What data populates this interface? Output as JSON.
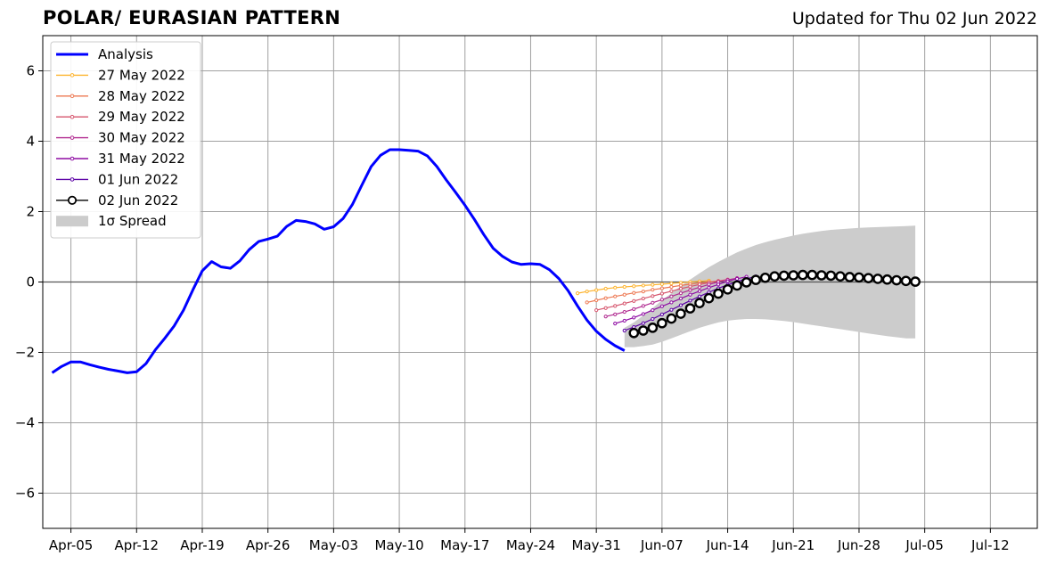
{
  "header": {
    "title": "POLAR/ EURASIAN  PATTERN",
    "updated": "Updated for Thu 02 Jun 2022"
  },
  "chart_data": {
    "type": "line",
    "title": "POLAR/ EURASIAN  PATTERN",
    "xlabel": "",
    "ylabel": "",
    "xlim": [
      "2022-04-02",
      "2022-07-17"
    ],
    "ylim": [
      -7,
      7
    ],
    "x_ticks": [
      "Apr-05",
      "Apr-12",
      "Apr-19",
      "Apr-26",
      "May-03",
      "May-10",
      "May-17",
      "May-24",
      "May-31",
      "Jun-07",
      "Jun-14",
      "Jun-21",
      "Jun-28",
      "Jul-05",
      "Jul-12"
    ],
    "y_ticks": [
      -6,
      -4,
      -2,
      0,
      2,
      4,
      6
    ],
    "grid": true,
    "legend_position": "upper-left",
    "series": [
      {
        "name": "Analysis",
        "color": "#0000ff",
        "start": "2022-04-03",
        "values": [
          -2.58,
          -2.4,
          -2.27,
          -2.27,
          -2.35,
          -2.42,
          -2.48,
          -2.53,
          -2.58,
          -2.55,
          -2.32,
          -1.93,
          -1.6,
          -1.25,
          -0.8,
          -0.22,
          0.32,
          0.58,
          0.43,
          0.39,
          0.6,
          0.92,
          1.15,
          1.22,
          1.3,
          1.58,
          1.75,
          1.72,
          1.65,
          1.5,
          1.57,
          1.8,
          2.2,
          2.75,
          3.28,
          3.6,
          3.76,
          3.76,
          3.74,
          3.72,
          3.58,
          3.28,
          2.9,
          2.55,
          2.18,
          1.78,
          1.35,
          0.96,
          0.73,
          0.57,
          0.5,
          0.52,
          0.5,
          0.35,
          0.1,
          -0.25,
          -0.68,
          -1.08,
          -1.4,
          -1.63,
          -1.81,
          -1.95
        ]
      },
      {
        "name": "27 May 2022",
        "color": "#fdb42f",
        "start": "2022-05-29",
        "values": [
          -0.32,
          -0.27,
          -0.23,
          -0.19,
          -0.16,
          -0.14,
          -0.12,
          -0.1,
          -0.08,
          -0.06,
          -0.04,
          -0.02,
          0,
          0.02,
          0.04
        ]
      },
      {
        "name": "28 May 2022",
        "color": "#ed7953",
        "start": "2022-05-30",
        "values": [
          -0.58,
          -0.52,
          -0.46,
          -0.41,
          -0.36,
          -0.31,
          -0.27,
          -0.22,
          -0.18,
          -0.14,
          -0.1,
          -0.06,
          -0.03,
          0,
          0.03
        ]
      },
      {
        "name": "29 May 2022",
        "color": "#d6556d",
        "start": "2022-05-31",
        "values": [
          -0.8,
          -0.74,
          -0.68,
          -0.61,
          -0.54,
          -0.47,
          -0.4,
          -0.33,
          -0.26,
          -0.19,
          -0.13,
          -0.07,
          -0.02,
          0.03,
          0.07
        ]
      },
      {
        "name": "30 May 2022",
        "color": "#b12a90",
        "start": "2022-06-01",
        "values": [
          -0.98,
          -0.92,
          -0.85,
          -0.77,
          -0.68,
          -0.59,
          -0.5,
          -0.41,
          -0.32,
          -0.23,
          -0.15,
          -0.07,
          0,
          0.06,
          0.11
        ]
      },
      {
        "name": "31 May 2022",
        "color": "#8f0da4",
        "start": "2022-06-02",
        "values": [
          -1.18,
          -1.1,
          -1.01,
          -0.91,
          -0.8,
          -0.69,
          -0.58,
          -0.47,
          -0.36,
          -0.26,
          -0.16,
          -0.07,
          0.02,
          0.09,
          0.15
        ]
      },
      {
        "name": "01 Jun 2022",
        "color": "#5c01a6",
        "start": "2022-06-03",
        "values": [
          -1.38,
          -1.28,
          -1.17,
          -1.05,
          -0.92,
          -0.79,
          -0.66,
          -0.53,
          -0.41,
          -0.29,
          -0.18,
          -0.08,
          0.01,
          0.09,
          0.16
        ]
      },
      {
        "name": "02 Jun 2022",
        "color": "#000000",
        "start": "2022-06-04",
        "values": [
          -1.45,
          -1.38,
          -1.3,
          -1.17,
          -1.04,
          -0.9,
          -0.75,
          -0.6,
          -0.46,
          -0.33,
          -0.21,
          -0.1,
          -0.01,
          0.06,
          0.12,
          0.16,
          0.18,
          0.19,
          0.2,
          0.2,
          0.19,
          0.18,
          0.16,
          0.14,
          0.13,
          0.11,
          0.09,
          0.07,
          0.05,
          0.03,
          0.01
        ]
      }
    ],
    "spread": {
      "name": "1σ Spread",
      "color": "#cccccc",
      "start": "2022-06-03",
      "upper": [
        -1.3,
        -1.15,
        -0.95,
        -0.74,
        -0.52,
        -0.32,
        -0.12,
        0.07,
        0.25,
        0.42,
        0.57,
        0.71,
        0.84,
        0.95,
        1.05,
        1.13,
        1.2,
        1.26,
        1.32,
        1.37,
        1.41,
        1.45,
        1.48,
        1.5,
        1.52,
        1.54,
        1.55,
        1.56,
        1.57,
        1.58,
        1.59,
        1.6
      ],
      "lower": [
        -1.85,
        -1.85,
        -1.82,
        -1.78,
        -1.7,
        -1.6,
        -1.5,
        -1.4,
        -1.3,
        -1.22,
        -1.15,
        -1.1,
        -1.07,
        -1.05,
        -1.05,
        -1.06,
        -1.08,
        -1.11,
        -1.14,
        -1.18,
        -1.22,
        -1.26,
        -1.3,
        -1.34,
        -1.38,
        -1.42,
        -1.46,
        -1.5,
        -1.54,
        -1.57,
        -1.6,
        -1.6
      ]
    }
  }
}
